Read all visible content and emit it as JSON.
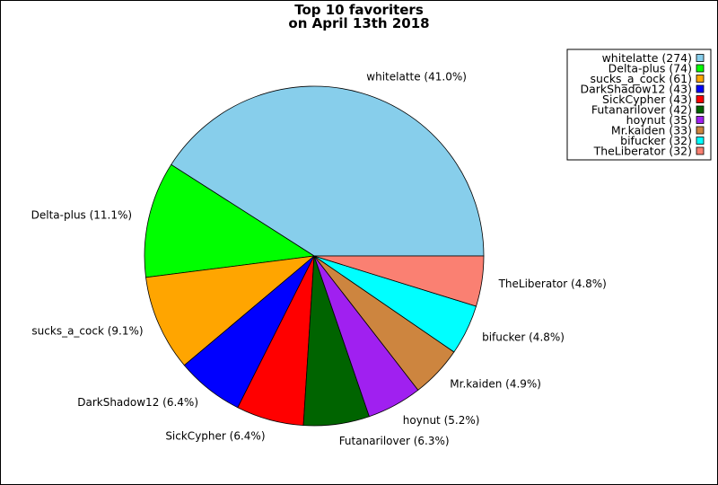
{
  "chart_data": {
    "type": "pie",
    "title_line1": "Top 10 favoriters",
    "title_line2": "on April 13th 2018",
    "legend_position": "top-right",
    "slices": [
      {
        "name": "whitelatte",
        "value": 274,
        "percent_label": "whitelatte (41.0%)",
        "legend_label": "whitelatte (274)",
        "color": "#87ceeb"
      },
      {
        "name": "Delta-plus",
        "value": 74,
        "percent_label": "Delta-plus (11.1%)",
        "legend_label": "Delta-plus (74)",
        "color": "#00ff00"
      },
      {
        "name": "sucks_a_cock",
        "value": 61,
        "percent_label": "sucks_a_cock (9.1%)",
        "legend_label": "sucks_a_cock (61)",
        "color": "#ffa500"
      },
      {
        "name": "DarkShadow12",
        "value": 43,
        "percent_label": "DarkShadow12 (6.4%)",
        "legend_label": "DarkShadow12 (43)",
        "color": "#0000ff"
      },
      {
        "name": "SickCypher",
        "value": 43,
        "percent_label": "SickCypher (6.4%)",
        "legend_label": "SickCypher (43)",
        "color": "#ff0000"
      },
      {
        "name": "Futanarilover",
        "value": 42,
        "percent_label": "Futanarilover (6.3%)",
        "legend_label": "Futanarilover (42)",
        "color": "#006400"
      },
      {
        "name": "hoynut",
        "value": 35,
        "percent_label": "hoynut (5.2%)",
        "legend_label": "hoynut (35)",
        "color": "#a020f0"
      },
      {
        "name": "Mr.kaiden",
        "value": 33,
        "percent_label": "Mr.kaiden (4.9%)",
        "legend_label": "Mr.kaiden (33)",
        "color": "#cd853f"
      },
      {
        "name": "bifucker",
        "value": 32,
        "percent_label": "bifucker (4.8%)",
        "legend_label": "bifucker (32)",
        "color": "#00ffff"
      },
      {
        "name": "TheLiberator",
        "value": 32,
        "percent_label": "TheLiberator (4.8%)",
        "legend_label": "TheLiberator (32)",
        "color": "#fa8072"
      }
    ]
  }
}
